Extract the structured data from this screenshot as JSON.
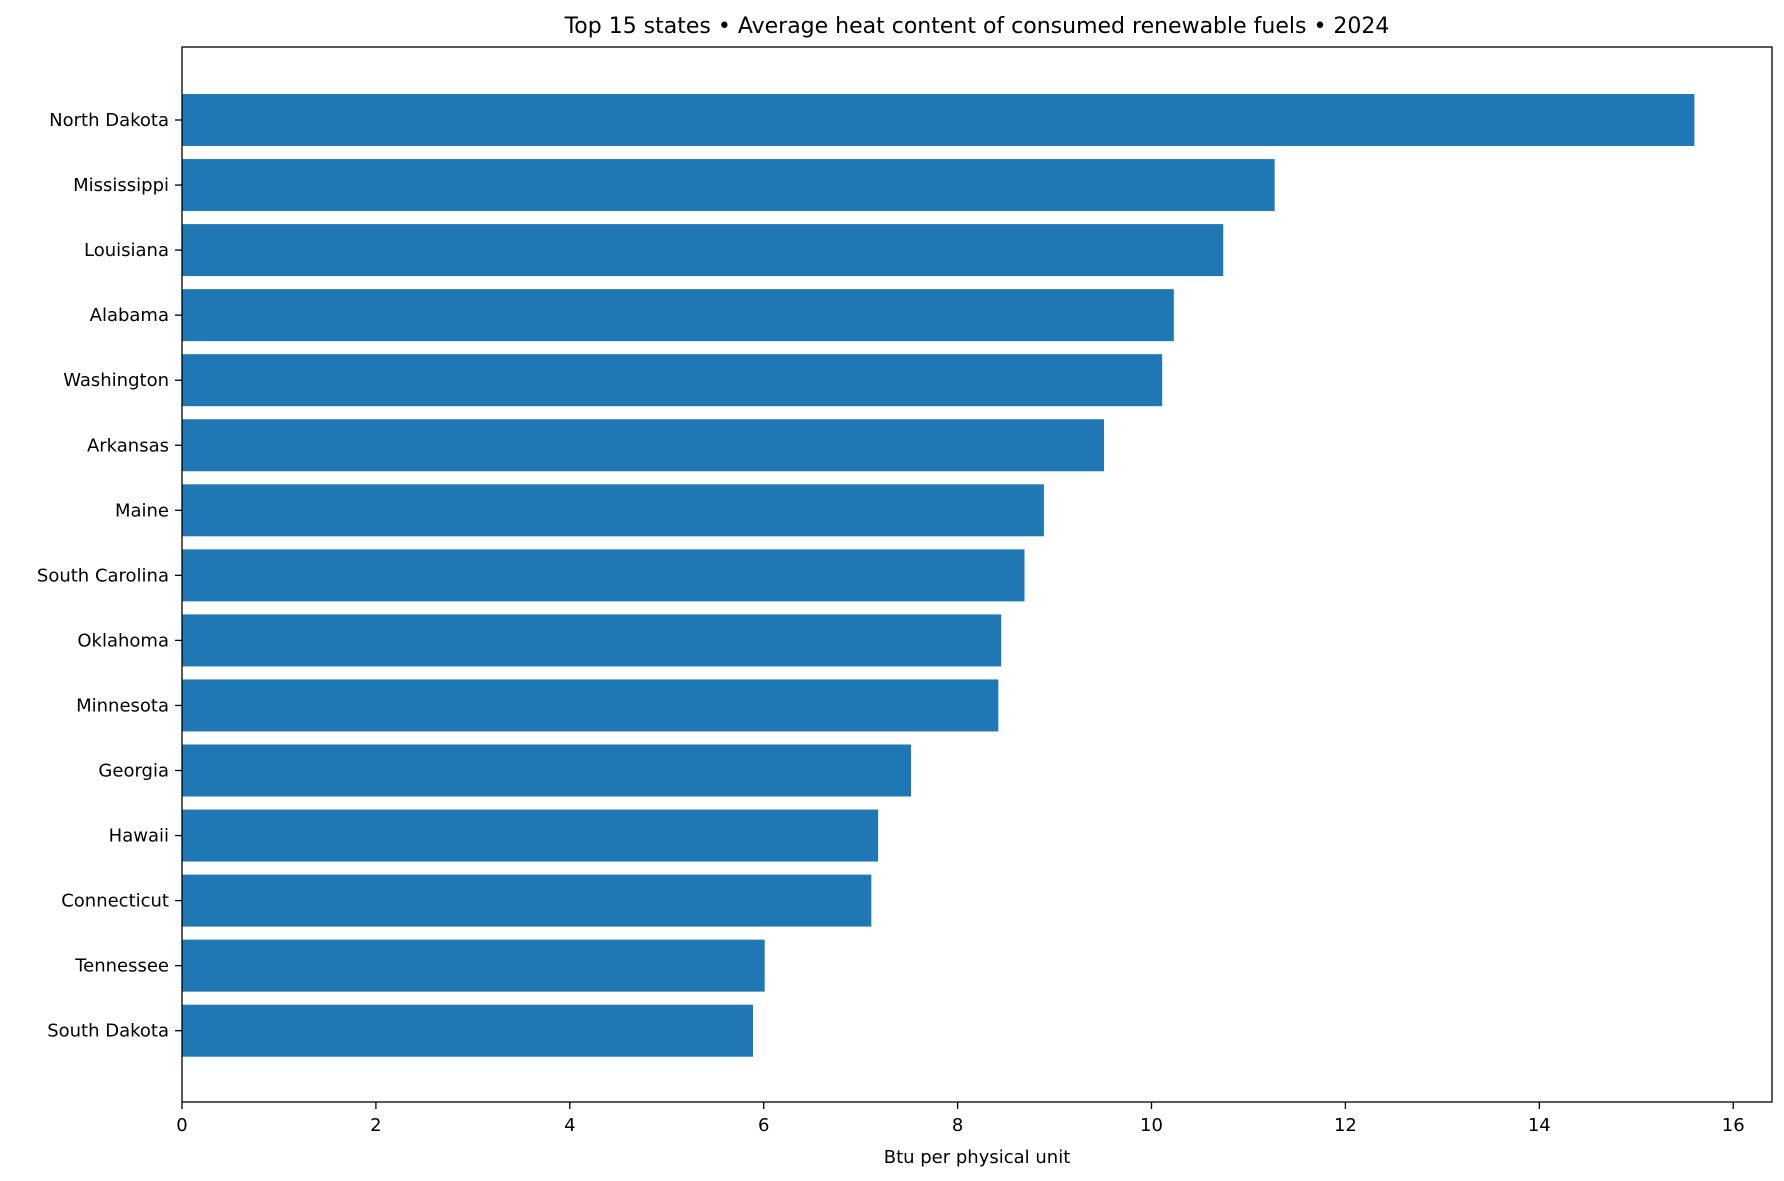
{
  "chart_data": {
    "type": "bar",
    "orientation": "horizontal",
    "title": "Top 15 states • Average heat content of consumed renewable fuels • 2024",
    "xlabel": "Btu per physical unit",
    "ylabel": "",
    "xlim": [
      0,
      16.4
    ],
    "xticks": [
      0,
      2,
      4,
      6,
      8,
      10,
      12,
      14,
      16
    ],
    "grid": false,
    "bar_color": "#1f77b4",
    "categories": [
      "North Dakota",
      "Mississippi",
      "Louisiana",
      "Alabama",
      "Washington",
      "Arkansas",
      "Maine",
      "South Carolina",
      "Oklahoma",
      "Minnesota",
      "Georgia",
      "Hawaii",
      "Connecticut",
      "Tennessee",
      "South Dakota"
    ],
    "values": [
      15.6,
      11.27,
      10.74,
      10.23,
      10.11,
      9.51,
      8.89,
      8.69,
      8.45,
      8.42,
      7.52,
      7.18,
      7.11,
      6.01,
      5.89
    ]
  }
}
